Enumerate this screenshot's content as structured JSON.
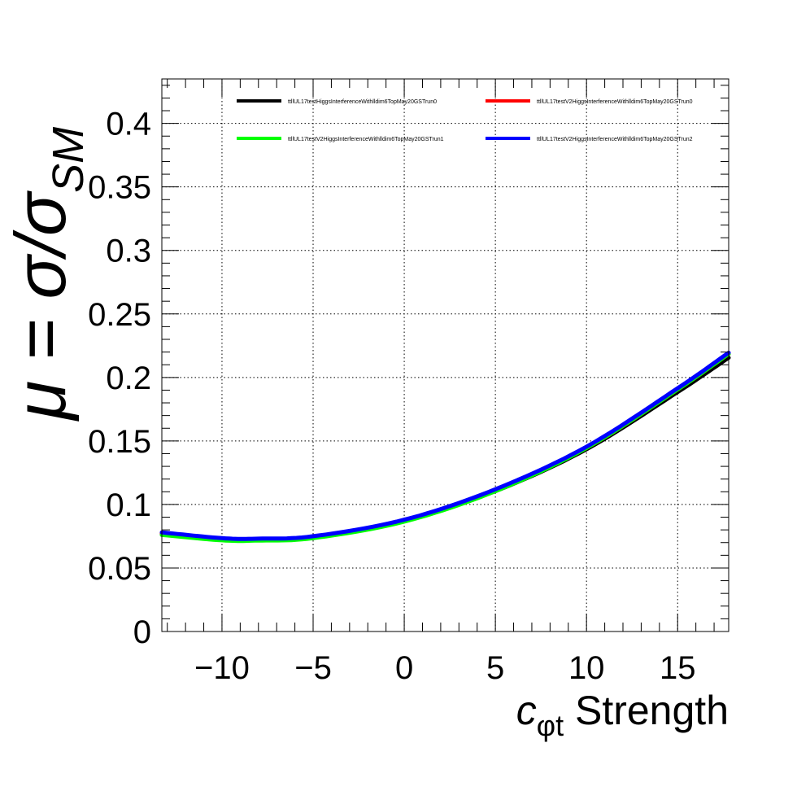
{
  "chart_data": {
    "type": "line",
    "title": "",
    "xlabel": {
      "main": "c",
      "sub": "φt",
      "rest": " Strength"
    },
    "ylabel": {
      "mu": "μ = σ/σ",
      "sub": "SM"
    },
    "xlim": [
      -13.3,
      17.8
    ],
    "ylim": [
      0,
      0.435
    ],
    "x_ticks": [
      -10,
      -5,
      0,
      5,
      10,
      15
    ],
    "x_tick_labels": [
      "−10",
      "−5",
      "0",
      "5",
      "10",
      "15"
    ],
    "y_ticks": [
      0,
      0.05,
      0.1,
      0.15,
      0.2,
      0.25,
      0.3,
      0.35,
      0.4
    ],
    "y_tick_labels": [
      "0",
      "0.05",
      "0.1",
      "0.15",
      "0.2",
      "0.25",
      "0.3",
      "0.35",
      "0.4"
    ],
    "grid": true,
    "legend_position": "top",
    "series": [
      {
        "name": "ttllUL17testHiggsInterferenceWithlldim6TopMay20GSTrun0",
        "color": "#000000",
        "x": [
          -13.3,
          -10,
          -8,
          -5,
          0,
          5,
          10,
          15,
          17.8
        ],
        "y": [
          0.077,
          0.0725,
          0.0722,
          0.074,
          0.087,
          0.1105,
          0.1435,
          0.1885,
          0.2155
        ]
      },
      {
        "name": "ttllUL17testV2HiggsInterferenceWithlldim6TopMay20GSTrun0",
        "color": "#ff0000",
        "x": [
          -13.3,
          -10,
          -8,
          -5,
          0,
          5,
          10,
          15,
          17.8
        ],
        "y": [
          0.0775,
          0.073,
          0.0727,
          0.0745,
          0.0875,
          0.1115,
          0.1445,
          0.1905,
          0.2185
        ]
      },
      {
        "name": "ttllUL17testV2HiggsInterferenceWithlldim6TopMay20GSTrun1",
        "color": "#00ff00",
        "x": [
          -13.3,
          -10,
          -8,
          -5,
          0,
          5,
          10,
          15,
          17.8
        ],
        "y": [
          0.076,
          0.0718,
          0.0716,
          0.0735,
          0.0865,
          0.1105,
          0.1445,
          0.1905,
          0.2185
        ]
      },
      {
        "name": "ttllUL17testV2HiggsInterferenceWithlldim6TopMay20GSTrun2",
        "color": "#0000ff",
        "x": [
          -13.3,
          -10,
          -8,
          -5,
          0,
          5,
          10,
          15,
          17.8
        ],
        "y": [
          0.078,
          0.0735,
          0.0731,
          0.075,
          0.088,
          0.112,
          0.1455,
          0.1915,
          0.2195
        ]
      }
    ]
  }
}
